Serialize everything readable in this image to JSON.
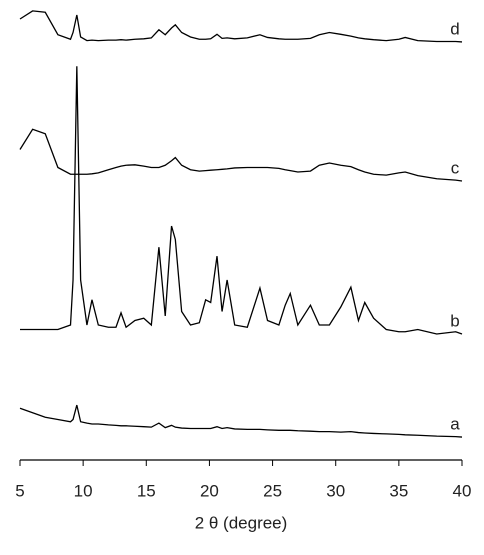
{
  "chart_data": {
    "type": "line",
    "x_label": "2 θ (degree)",
    "x": [
      5,
      6,
      7,
      8,
      9,
      9.2,
      9.5,
      9.8,
      10.3,
      10.7,
      11.2,
      12,
      12.6,
      13,
      13.4,
      14.1,
      14.8,
      15.4,
      16,
      16.5,
      17,
      17.3,
      17.8,
      18.5,
      19.2,
      19.7,
      20.1,
      20.6,
      21,
      21.4,
      22,
      23,
      24,
      24.6,
      25.5,
      26,
      26.4,
      27,
      28,
      28.7,
      29.5,
      30.4,
      31.2,
      31.8,
      32.3,
      33,
      34,
      35,
      35.5,
      36.5,
      38,
      39.5,
      40
    ],
    "series": [
      {
        "name": "a",
        "color": "#000000",
        "values": [
          11.5,
          10.5,
          9.5,
          9,
          8.5,
          9,
          12.2,
          8.5,
          8.2,
          8,
          8,
          7.8,
          7.7,
          7.6,
          7.6,
          7.5,
          7.4,
          7.3,
          8.2,
          7.2,
          7.7,
          7.3,
          7.1,
          7,
          7,
          7,
          7,
          7.4,
          7,
          7.2,
          6.9,
          6.8,
          6.8,
          6.7,
          6.6,
          6.6,
          6.6,
          6.5,
          6.4,
          6.3,
          6.3,
          6.2,
          6.3,
          6.1,
          6,
          5.9,
          5.8,
          5.7,
          5.6,
          5.5,
          5.3,
          5.2,
          5.1
        ]
      },
      {
        "name": "b",
        "color": "#000000",
        "values": [
          29,
          29,
          29,
          29,
          30,
          40,
          87.5,
          40,
          30,
          35.6,
          30,
          29.5,
          29.5,
          32.7,
          29.5,
          31,
          31.5,
          30,
          47.3,
          32,
          52,
          49,
          33,
          30,
          30.5,
          35.6,
          35,
          45.3,
          33,
          40,
          30,
          29.5,
          38.2,
          31,
          30,
          34.4,
          37,
          30,
          34.4,
          30,
          30,
          34,
          38.4,
          31,
          35,
          31.5,
          29,
          28.5,
          28.5,
          29,
          28,
          28.5,
          28
        ]
      },
      {
        "name": "c",
        "color": "#000000",
        "values": [
          69,
          73.5,
          72.5,
          65,
          63.5,
          63.5,
          63.5,
          63.5,
          63.5,
          63.6,
          63.8,
          64.5,
          65,
          65.3,
          65.5,
          65.6,
          65.3,
          65,
          65,
          65.5,
          66.5,
          67.2,
          65.5,
          64.5,
          64.2,
          64.3,
          64.4,
          64.5,
          64.6,
          64.7,
          64.9,
          65,
          65,
          65,
          64.8,
          64.5,
          64.3,
          64,
          64.2,
          65.5,
          66,
          65.5,
          65.2,
          64.5,
          64,
          63.5,
          63.3,
          63.8,
          64,
          63.2,
          62.5,
          62.2,
          62
        ]
      },
      {
        "name": "d",
        "color": "#000000",
        "values": [
          98,
          99.8,
          99.5,
          94.5,
          93.5,
          95,
          98.9,
          94,
          93.2,
          93.3,
          93.2,
          93.3,
          93.3,
          93.4,
          93.3,
          93.5,
          93.6,
          93.8,
          95.6,
          94.5,
          96,
          96.7,
          95,
          94,
          93.5,
          93.5,
          93.6,
          94.6,
          93.7,
          93.8,
          93.6,
          93.8,
          94.5,
          93.9,
          93.6,
          93.5,
          93.5,
          93.5,
          93.7,
          94.5,
          95,
          94.6,
          94.2,
          93.8,
          93.6,
          93.4,
          93.2,
          93.5,
          93.9,
          93.2,
          93,
          93,
          92.9
        ]
      }
    ],
    "xlim": [
      5,
      40
    ],
    "xticks": [
      5,
      10,
      15,
      20,
      25,
      30,
      35,
      40
    ],
    "ylim": [
      0,
      100
    ]
  }
}
